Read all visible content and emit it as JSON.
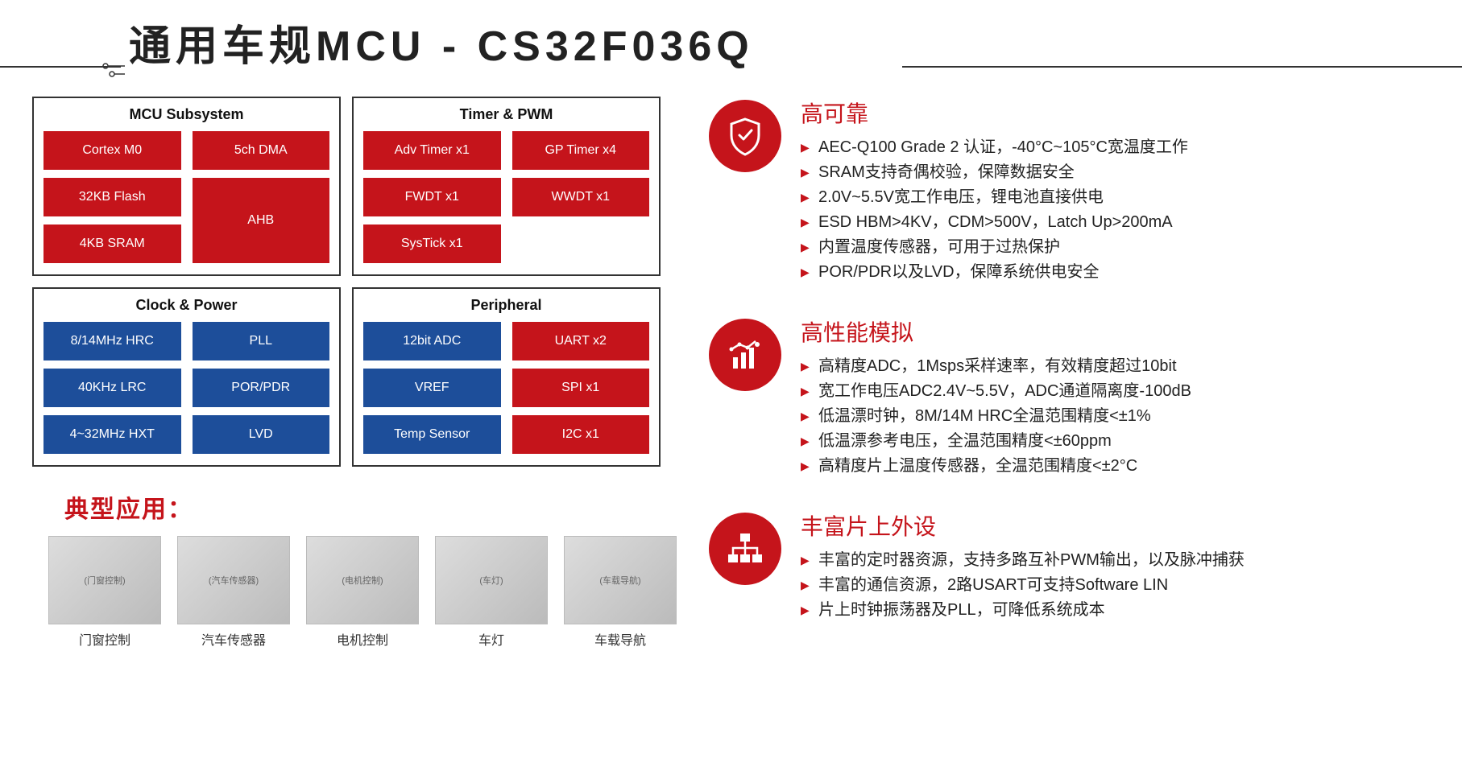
{
  "title": "通用车规MCU - CS32F036Q",
  "colors": {
    "red": "#c5141b",
    "blue": "#1d4e9a",
    "border": "#333333",
    "text": "#222222",
    "bg": "#ffffff"
  },
  "quads": [
    {
      "title": "MCU Subsystem",
      "layout": "mcu",
      "blocks": [
        {
          "label": "Cortex M0",
          "color": "#c5141b"
        },
        {
          "label": "5ch DMA",
          "color": "#c5141b"
        },
        {
          "label": "32KB Flash",
          "color": "#c5141b"
        },
        {
          "label": "AHB",
          "color": "#c5141b",
          "tall": true
        },
        {
          "label": "4KB SRAM",
          "color": "#c5141b"
        }
      ]
    },
    {
      "title": "Timer & PWM",
      "layout": "timer",
      "blocks": [
        {
          "label": "Adv Timer x1",
          "color": "#c5141b"
        },
        {
          "label": "GP Timer x4",
          "color": "#c5141b"
        },
        {
          "label": "FWDT x1",
          "color": "#c5141b"
        },
        {
          "label": "WWDT x1",
          "color": "#c5141b"
        },
        {
          "label": "SysTick x1",
          "color": "#c5141b"
        }
      ]
    },
    {
      "title": "Clock & Power",
      "layout": "grid",
      "blocks": [
        {
          "label": "8/14MHz HRC",
          "color": "#1d4e9a"
        },
        {
          "label": "PLL",
          "color": "#1d4e9a"
        },
        {
          "label": "40KHz LRC",
          "color": "#1d4e9a"
        },
        {
          "label": "POR/PDR",
          "color": "#1d4e9a"
        },
        {
          "label": "4~32MHz HXT",
          "color": "#1d4e9a"
        },
        {
          "label": "LVD",
          "color": "#1d4e9a"
        }
      ]
    },
    {
      "title": "Peripheral",
      "layout": "grid",
      "blocks": [
        {
          "label": "12bit ADC",
          "color": "#1d4e9a"
        },
        {
          "label": "UART x2",
          "color": "#c5141b"
        },
        {
          "label": "VREF",
          "color": "#1d4e9a"
        },
        {
          "label": "SPI x1",
          "color": "#c5141b"
        },
        {
          "label": "Temp Sensor",
          "color": "#1d4e9a"
        },
        {
          "label": "I2C x1",
          "color": "#c5141b"
        }
      ]
    }
  ],
  "apps": {
    "title": "典型应用：",
    "items": [
      {
        "label": "门窗控制"
      },
      {
        "label": "汽车传感器"
      },
      {
        "label": "电机控制"
      },
      {
        "label": "车灯"
      },
      {
        "label": "车载导航"
      }
    ]
  },
  "features": [
    {
      "icon": "shield",
      "title": "高可靠",
      "items": [
        "AEC-Q100 Grade 2 认证，-40°C~105°C宽温度工作",
        "SRAM支持奇偶校验，保障数据安全",
        "2.0V~5.5V宽工作电压，锂电池直接供电",
        "ESD HBM>4KV，CDM>500V，Latch Up>200mA",
        "内置温度传感器，可用于过热保护",
        "POR/PDR以及LVD，保障系统供电安全"
      ]
    },
    {
      "icon": "chart",
      "title": "高性能模拟",
      "items": [
        "高精度ADC，1Msps采样速率，有效精度超过10bit",
        "宽工作电压ADC2.4V~5.5V，ADC通道隔离度-100dB",
        "低温漂时钟，8M/14M HRC全温范围精度<±1%",
        "低温漂参考电压，全温范围精度<±60ppm",
        "高精度片上温度传感器，全温范围精度<±2°C"
      ]
    },
    {
      "icon": "tree",
      "title": "丰富片上外设",
      "items": [
        "丰富的定时器资源，支持多路互补PWM输出，以及脉冲捕获",
        "丰富的通信资源，2路USART可支持Software LIN",
        "片上时钟振荡器及PLL，可降低系统成本"
      ]
    }
  ]
}
